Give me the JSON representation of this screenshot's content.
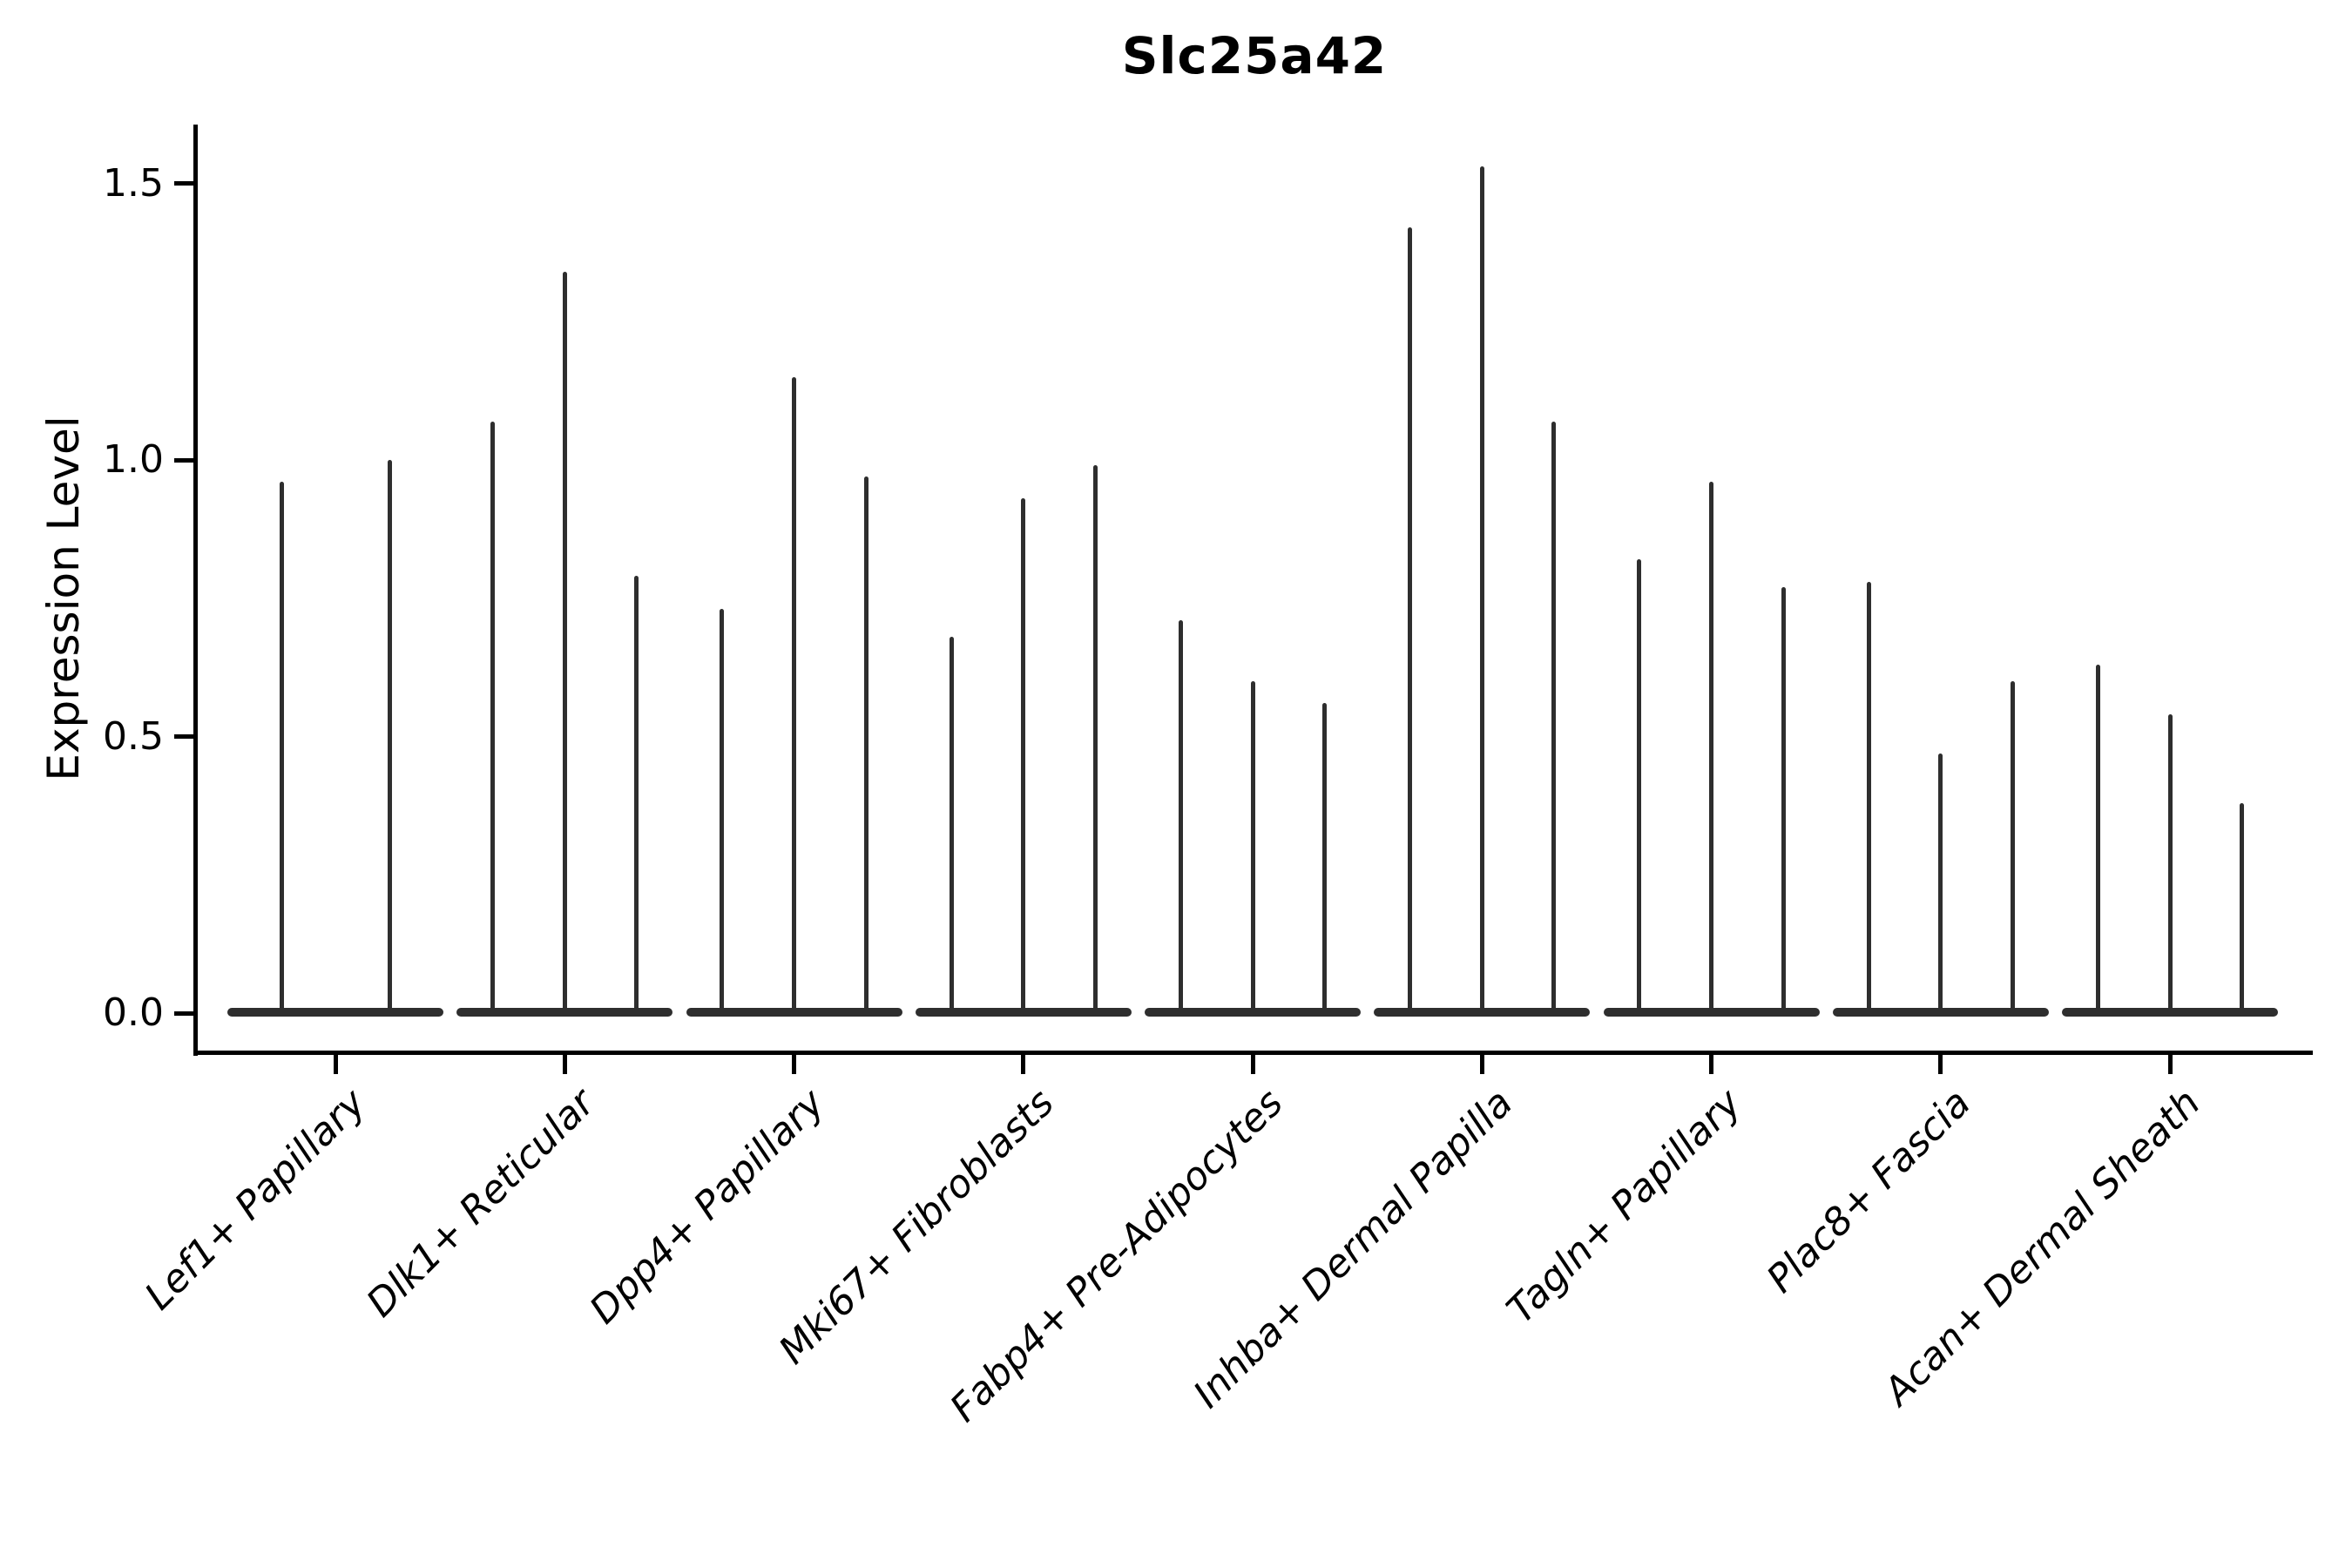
{
  "figure": {
    "title": "Slc25a42",
    "ylabel": "Expression Level",
    "colors": {
      "violin": "#2e2e2e",
      "axis": "#000000",
      "background": "#ffffff",
      "text": "#000000"
    }
  },
  "chart_data": {
    "type": "violin",
    "title": "Slc25a42",
    "xlabel": "",
    "ylabel": "Expression Level",
    "ylim": [
      -0.07,
      1.61
    ],
    "yticks": [
      0.0,
      0.5,
      1.0,
      1.5
    ],
    "ytick_labels": [
      "0.0",
      "0.5",
      "1.0",
      "1.5"
    ],
    "grid": false,
    "legend_position": "none",
    "x_tick_rotation_deg": 45,
    "baseline_value": 0.0,
    "violin_shape_note": "Each violin is a thin dark spike: wide flat body at expression 0 with a narrow tail rising to its maximum value.",
    "categories": [
      "Lef1+ Papillary",
      "Dlk1+ Reticular",
      "Dpp4+ Papillary",
      "Mki67+ Fibroblasts",
      "Fabp4+ Pre-Adipocytes",
      "Inhba+ Dermal Papilla",
      "Tagln+ Papillary",
      "Plac8+ Fascia",
      "Acan+ Dermal Sheath"
    ],
    "groups": [
      {
        "category": "Lef1+ Papillary",
        "violin_maxima": [
          0.96,
          1.0
        ]
      },
      {
        "category": "Dlk1+ Reticular",
        "violin_maxima": [
          1.07,
          1.34,
          0.79
        ]
      },
      {
        "category": "Dpp4+ Papillary",
        "violin_maxima": [
          0.73,
          1.15,
          0.97
        ]
      },
      {
        "category": "Mki67+ Fibroblasts",
        "violin_maxima": [
          0.68,
          0.93,
          0.99
        ]
      },
      {
        "category": "Fabp4+ Pre-Adipocytes",
        "violin_maxima": [
          0.71,
          0.6,
          0.56
        ]
      },
      {
        "category": "Inhba+ Dermal Papilla",
        "violin_maxima": [
          1.42,
          1.53,
          1.07
        ]
      },
      {
        "category": "Tagln+ Papillary",
        "violin_maxima": [
          0.82,
          0.96,
          0.77
        ]
      },
      {
        "category": "Plac8+ Fascia",
        "violin_maxima": [
          0.78,
          0.47,
          0.6
        ]
      },
      {
        "category": "Acan+ Dermal Sheath",
        "violin_maxima": [
          0.63,
          0.54,
          0.38
        ]
      }
    ]
  }
}
